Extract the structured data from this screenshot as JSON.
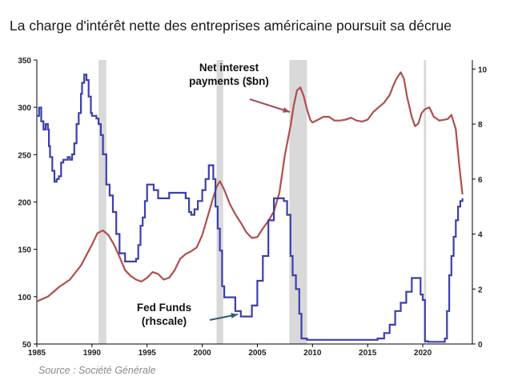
{
  "title": "La charge d'intérêt nette des entreprises américaine poursuit sa décrue",
  "source": "Source : Société Générale",
  "colors": {
    "net_interest": "#b24d4d",
    "fed_funds": "#3a3fae",
    "recession": "#d9d9d9",
    "arrow_red": "#a8474d",
    "arrow_blue": "#2e5d73"
  },
  "chart_data": {
    "type": "line",
    "xlim": [
      1985,
      2024.5
    ],
    "ylim_left": [
      50,
      350
    ],
    "ylim_right": [
      0,
      10.33
    ],
    "x_ticks": [
      "1985",
      "1990",
      "1995",
      "2000",
      "2005",
      "2010",
      "2015",
      "2020"
    ],
    "y_left_ticks": [
      "50",
      "100",
      "150",
      "200",
      "250",
      "300",
      "350"
    ],
    "y_right_ticks": [
      "0",
      "2",
      "4",
      "6",
      "8",
      "10"
    ],
    "grid": false,
    "recessions": [
      [
        1990.6,
        1991.3
      ],
      [
        2001.3,
        2001.9
      ],
      [
        2007.9,
        2009.5
      ],
      [
        2020.1,
        2020.3
      ]
    ],
    "annotations": [
      {
        "lines": [
          "Net interest",
          "payments ($bn)"
        ],
        "series": "net_interest"
      },
      {
        "lines": [
          "Fed Funds",
          "(rhscale)"
        ],
        "series": "fed_funds"
      }
    ],
    "series": [
      {
        "name": "Net interest payments ($bn)",
        "axis": "left",
        "x": [
          1985.0,
          1986.0,
          1987.0,
          1988.0,
          1989.0,
          1990.0,
          1990.5,
          1991.0,
          1991.5,
          1992.0,
          1992.5,
          1993.0,
          1993.5,
          1994.0,
          1994.5,
          1995.0,
          1995.5,
          1996.0,
          1996.5,
          1997.0,
          1997.5,
          1998.0,
          1998.5,
          1999.0,
          1999.5,
          2000.0,
          2000.5,
          2001.0,
          2001.3,
          2001.6,
          2002.0,
          2002.5,
          2003.0,
          2003.5,
          2004.0,
          2004.5,
          2005.0,
          2005.5,
          2006.0,
          2006.5,
          2007.0,
          2007.5,
          2008.0,
          2008.3,
          2008.6,
          2008.9,
          2009.2,
          2009.5,
          2009.8,
          2010.0,
          2010.5,
          2011.0,
          2011.5,
          2012.0,
          2012.5,
          2013.0,
          2013.5,
          2014.0,
          2014.5,
          2015.0,
          2015.5,
          2016.0,
          2016.5,
          2017.0,
          2017.3,
          2017.6,
          2018.0,
          2018.3,
          2018.6,
          2019.0,
          2019.3,
          2019.6,
          2019.9,
          2020.2,
          2020.6,
          2021.0,
          2021.5,
          2022.0,
          2022.3,
          2022.6,
          2023.0,
          2023.3,
          2023.6
        ],
        "values": [
          95,
          100,
          110,
          118,
          133,
          155,
          167,
          170,
          165,
          155,
          142,
          128,
          122,
          118,
          116,
          120,
          126,
          124,
          118,
          120,
          128,
          140,
          145,
          148,
          152,
          165,
          185,
          205,
          216,
          222,
          213,
          198,
          187,
          178,
          168,
          162,
          163,
          172,
          180,
          190,
          210,
          250,
          280,
          302,
          318,
          321,
          312,
          298,
          287,
          284,
          287,
          290,
          290,
          286,
          286,
          287,
          289,
          286,
          285,
          287,
          295,
          300,
          305,
          313,
          322,
          330,
          337,
          330,
          310,
          290,
          280,
          283,
          294,
          298,
          300,
          290,
          286,
          287,
          288,
          292,
          277,
          240,
          208
        ]
      },
      {
        "name": "Fed Funds (rhscale)",
        "axis": "right",
        "x": [
          1985.0,
          1985.2,
          1985.4,
          1985.6,
          1985.8,
          1986.0,
          1986.1,
          1986.2,
          1986.4,
          1986.6,
          1986.8,
          1987.0,
          1987.2,
          1987.4,
          1987.6,
          1987.8,
          1988.0,
          1988.2,
          1988.4,
          1988.6,
          1988.8,
          1989.0,
          1989.1,
          1989.3,
          1989.5,
          1989.7,
          1989.9,
          1990.0,
          1990.2,
          1990.4,
          1990.6,
          1990.8,
          1991.0,
          1991.3,
          1991.6,
          1991.9,
          1992.2,
          1992.5,
          1993.0,
          1993.5,
          1994.0,
          1994.2,
          1994.4,
          1994.6,
          1994.8,
          1995.0,
          1995.3,
          1995.6,
          1996.0,
          1996.5,
          1997.0,
          1997.3,
          1997.6,
          1998.0,
          1998.5,
          1998.8,
          1999.0,
          1999.3,
          1999.6,
          2000.0,
          2000.3,
          2000.6,
          2000.9,
          2001.0,
          2001.2,
          2001.4,
          2001.6,
          2001.8,
          2002.0,
          2002.5,
          2003.0,
          2003.5,
          2004.0,
          2004.5,
          2005.0,
          2005.5,
          2006.0,
          2006.5,
          2007.0,
          2007.4,
          2007.7,
          2008.0,
          2008.2,
          2008.5,
          2008.8,
          2009.0,
          2009.5,
          2010.0,
          2012.0,
          2014.0,
          2015.9,
          2016.5,
          2017.0,
          2017.5,
          2018.0,
          2018.5,
          2019.0,
          2019.5,
          2019.8,
          2020.0,
          2020.2,
          2020.5,
          2021.0,
          2022.0,
          2022.2,
          2022.4,
          2022.6,
          2022.8,
          2023.0,
          2023.2,
          2023.4,
          2023.6
        ],
        "values": [
          8.3,
          8.6,
          8.1,
          7.8,
          8.0,
          7.8,
          7.2,
          6.8,
          6.3,
          5.9,
          6.0,
          6.1,
          6.6,
          6.7,
          6.7,
          6.8,
          6.7,
          6.9,
          7.3,
          8.0,
          8.4,
          9.1,
          9.5,
          9.8,
          9.6,
          9.0,
          8.4,
          8.3,
          8.3,
          8.2,
          8.0,
          7.6,
          6.9,
          5.8,
          5.4,
          4.8,
          4.0,
          3.3,
          3.0,
          3.0,
          3.1,
          3.6,
          4.3,
          4.6,
          5.2,
          5.8,
          5.8,
          5.6,
          5.3,
          5.3,
          5.5,
          5.5,
          5.5,
          5.5,
          5.3,
          4.8,
          4.7,
          4.9,
          5.2,
          5.6,
          6.0,
          6.5,
          6.5,
          6.0,
          5.0,
          4.2,
          3.4,
          2.1,
          1.7,
          1.7,
          1.2,
          1.0,
          1.0,
          1.4,
          2.3,
          3.2,
          4.5,
          5.3,
          5.3,
          5.2,
          4.7,
          3.2,
          2.5,
          2.0,
          1.1,
          0.2,
          0.15,
          0.15,
          0.15,
          0.15,
          0.2,
          0.4,
          0.7,
          1.2,
          1.5,
          1.9,
          2.4,
          2.4,
          1.8,
          1.6,
          0.1,
          0.08,
          0.08,
          0.2,
          1.2,
          2.5,
          3.2,
          3.9,
          4.5,
          5.0,
          5.2,
          5.3
        ]
      }
    ]
  }
}
